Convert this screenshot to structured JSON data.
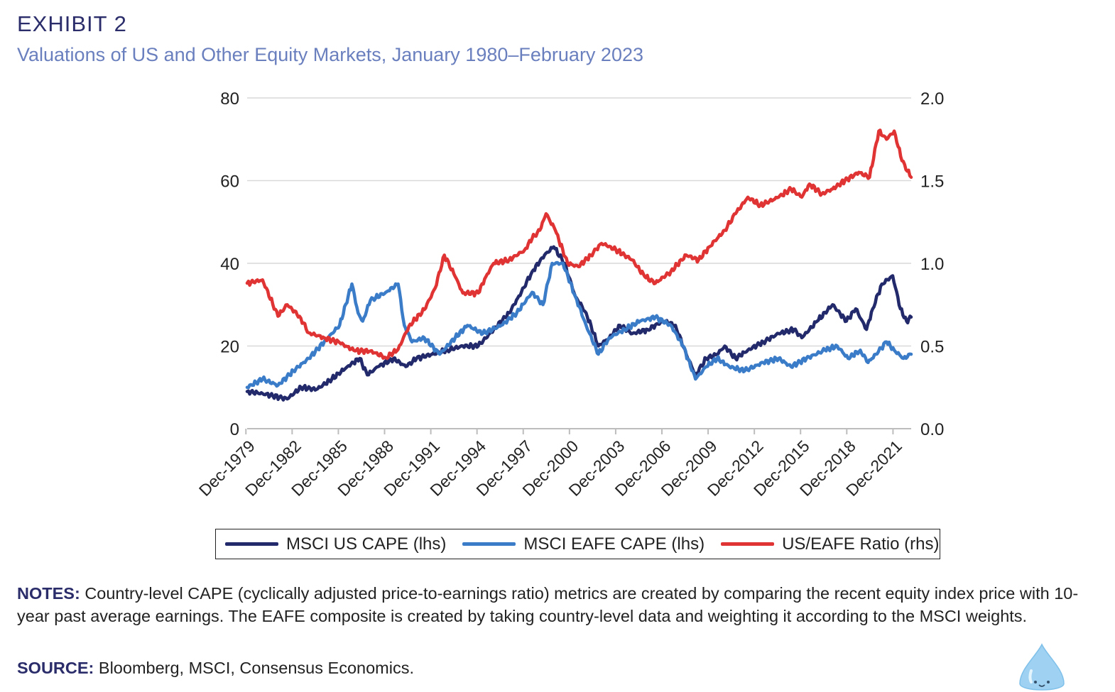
{
  "header": {
    "exhibit": "EXHIBIT 2",
    "subtitle": "Valuations of US and Other Equity Markets, January 1980–February 2023"
  },
  "footer": {
    "notes_label": "NOTES:",
    "notes_text": "Country-level CAPE (cyclically adjusted price-to-earnings ratio) metrics are created by comparing the recent equity index price with 10-year past average earnings. The EAFE composite is created by taking country-level data and weighting it according to the MSCI weights.",
    "source_label": "SOURCE:",
    "source_text": "Bloomberg, MSCI, Consensus Economics."
  },
  "colors": {
    "us": "#232a6b",
    "eafe": "#3b7cc9",
    "ratio": "#e03333",
    "grid": "#d9d9d9",
    "title": "#2b2d6b",
    "subtitle": "#6a7fbe"
  },
  "icons": {
    "corner": "water-drop-mascot-icon"
  },
  "chart_data": {
    "type": "line",
    "title": "Valuations of US and Other Equity Markets, January 1980–February 2023",
    "xlabel": "",
    "ylabel_left": "",
    "ylabel_right": "",
    "x_range": [
      1980.0,
      2023.1
    ],
    "xticks": [
      {
        "year": 1979.92,
        "label": "Dec-1979"
      },
      {
        "year": 1982.92,
        "label": "Dec-1982"
      },
      {
        "year": 1985.92,
        "label": "Dec-1985"
      },
      {
        "year": 1988.92,
        "label": "Dec-1988"
      },
      {
        "year": 1991.92,
        "label": "Dec-1991"
      },
      {
        "year": 1994.92,
        "label": "Dec-1994"
      },
      {
        "year": 1997.92,
        "label": "Dec-1997"
      },
      {
        "year": 2000.92,
        "label": "Dec-2000"
      },
      {
        "year": 2003.92,
        "label": "Dec-2003"
      },
      {
        "year": 2006.92,
        "label": "Dec-2006"
      },
      {
        "year": 2009.92,
        "label": "Dec-2009"
      },
      {
        "year": 2012.92,
        "label": "Dec-2012"
      },
      {
        "year": 2015.92,
        "label": "Dec-2015"
      },
      {
        "year": 2018.92,
        "label": "Dec-2018"
      },
      {
        "year": 2021.92,
        "label": "Dec-2021"
      }
    ],
    "ylim_left": [
      0,
      80
    ],
    "yticks_left": [
      "0",
      "20",
      "40",
      "60",
      "80"
    ],
    "ylim_right": [
      0,
      2
    ],
    "yticks_right": [
      "0.0",
      "0.5",
      "1.0",
      "1.5",
      "2.0"
    ],
    "grid": true,
    "legend_position": "bottom",
    "series": [
      {
        "name": "MSCI US CAPE (lhs)",
        "axis": "left",
        "color": "#232a6b",
        "points": [
          [
            1980.0,
            9
          ],
          [
            1981.0,
            8.5
          ],
          [
            1982.6,
            7.2
          ],
          [
            1983.5,
            10
          ],
          [
            1984.5,
            9.5
          ],
          [
            1985.5,
            12
          ],
          [
            1986.5,
            15
          ],
          [
            1987.3,
            17
          ],
          [
            1987.8,
            13
          ],
          [
            1988.5,
            15
          ],
          [
            1989.5,
            17
          ],
          [
            1990.3,
            15
          ],
          [
            1991.0,
            17
          ],
          [
            1992.0,
            18
          ],
          [
            1993.0,
            19
          ],
          [
            1994.0,
            20
          ],
          [
            1995.0,
            20
          ],
          [
            1996.0,
            24
          ],
          [
            1997.0,
            28
          ],
          [
            1997.8,
            33
          ],
          [
            1998.5,
            38
          ],
          [
            1999.3,
            42
          ],
          [
            1999.9,
            44
          ],
          [
            2000.6,
            40
          ],
          [
            2001.3,
            32
          ],
          [
            2002.0,
            28
          ],
          [
            2002.8,
            20
          ],
          [
            2003.5,
            22
          ],
          [
            2004.2,
            25
          ],
          [
            2005.0,
            23
          ],
          [
            2006.0,
            24
          ],
          [
            2007.0,
            26
          ],
          [
            2007.8,
            25
          ],
          [
            2008.5,
            18
          ],
          [
            2009.1,
            13
          ],
          [
            2009.8,
            17
          ],
          [
            2010.5,
            18
          ],
          [
            2011.0,
            20
          ],
          [
            2011.7,
            17
          ],
          [
            2012.5,
            19
          ],
          [
            2013.5,
            21
          ],
          [
            2014.5,
            23
          ],
          [
            2015.5,
            24
          ],
          [
            2016.0,
            22
          ],
          [
            2017.0,
            26
          ],
          [
            2018.0,
            30
          ],
          [
            2018.9,
            26
          ],
          [
            2019.5,
            29
          ],
          [
            2020.2,
            24
          ],
          [
            2020.6,
            29
          ],
          [
            2021.2,
            35
          ],
          [
            2021.9,
            37
          ],
          [
            2022.4,
            29
          ],
          [
            2022.8,
            26
          ],
          [
            2023.1,
            27
          ]
        ]
      },
      {
        "name": "MSCI EAFE CAPE (lhs)",
        "axis": "left",
        "color": "#3b7cc9",
        "points": [
          [
            1980.0,
            10
          ],
          [
            1981.0,
            12
          ],
          [
            1982.0,
            10.5
          ],
          [
            1983.0,
            14
          ],
          [
            1984.0,
            17
          ],
          [
            1985.0,
            21
          ],
          [
            1986.0,
            25
          ],
          [
            1986.8,
            35
          ],
          [
            1987.2,
            28
          ],
          [
            1987.5,
            26
          ],
          [
            1988.0,
            31
          ],
          [
            1989.0,
            33
          ],
          [
            1989.8,
            35
          ],
          [
            1990.2,
            25
          ],
          [
            1990.7,
            21
          ],
          [
            1991.5,
            22
          ],
          [
            1992.5,
            18
          ],
          [
            1993.5,
            22
          ],
          [
            1994.3,
            25
          ],
          [
            1995.3,
            23
          ],
          [
            1996.5,
            25
          ],
          [
            1997.5,
            28
          ],
          [
            1998.5,
            33
          ],
          [
            1999.2,
            30
          ],
          [
            1999.8,
            40
          ],
          [
            2000.5,
            40
          ],
          [
            2001.3,
            32
          ],
          [
            2002.0,
            25
          ],
          [
            2002.8,
            18
          ],
          [
            2003.5,
            22
          ],
          [
            2004.5,
            24
          ],
          [
            2005.5,
            26
          ],
          [
            2006.5,
            27
          ],
          [
            2007.5,
            25
          ],
          [
            2008.3,
            20
          ],
          [
            2009.1,
            12
          ],
          [
            2009.8,
            15
          ],
          [
            2010.5,
            17
          ],
          [
            2011.3,
            15
          ],
          [
            2012.3,
            14
          ],
          [
            2013.5,
            16
          ],
          [
            2014.5,
            17
          ],
          [
            2015.3,
            15
          ],
          [
            2016.3,
            17
          ],
          [
            2017.5,
            19
          ],
          [
            2018.3,
            20
          ],
          [
            2019.0,
            17
          ],
          [
            2019.8,
            19
          ],
          [
            2020.3,
            16
          ],
          [
            2020.8,
            18
          ],
          [
            2021.5,
            21
          ],
          [
            2022.0,
            19
          ],
          [
            2022.6,
            17
          ],
          [
            2023.1,
            18
          ]
        ]
      },
      {
        "name": "US/EAFE Ratio (rhs)",
        "axis": "right",
        "color": "#e03333",
        "points": [
          [
            1980.0,
            0.88
          ],
          [
            1981.0,
            0.9
          ],
          [
            1982.0,
            0.68
          ],
          [
            1982.6,
            0.75
          ],
          [
            1983.4,
            0.68
          ],
          [
            1984.0,
            0.58
          ],
          [
            1985.0,
            0.55
          ],
          [
            1986.0,
            0.52
          ],
          [
            1987.0,
            0.47
          ],
          [
            1988.0,
            0.47
          ],
          [
            1989.0,
            0.43
          ],
          [
            1989.8,
            0.48
          ],
          [
            1990.5,
            0.62
          ],
          [
            1991.5,
            0.72
          ],
          [
            1992.2,
            0.85
          ],
          [
            1992.8,
            1.05
          ],
          [
            1993.5,
            0.92
          ],
          [
            1994.0,
            0.82
          ],
          [
            1995.0,
            0.82
          ],
          [
            1995.5,
            0.92
          ],
          [
            1996.0,
            1.0
          ],
          [
            1997.0,
            1.02
          ],
          [
            1998.0,
            1.08
          ],
          [
            1998.5,
            1.15
          ],
          [
            1999.0,
            1.2
          ],
          [
            1999.4,
            1.3
          ],
          [
            2000.0,
            1.2
          ],
          [
            2000.8,
            1.0
          ],
          [
            2001.5,
            0.98
          ],
          [
            2002.3,
            1.05
          ],
          [
            2003.0,
            1.12
          ],
          [
            2003.6,
            1.1
          ],
          [
            2004.5,
            1.05
          ],
          [
            2005.0,
            1.02
          ],
          [
            2005.8,
            0.92
          ],
          [
            2006.5,
            0.88
          ],
          [
            2007.5,
            0.95
          ],
          [
            2008.5,
            1.05
          ],
          [
            2009.3,
            1.02
          ],
          [
            2010.0,
            1.1
          ],
          [
            2011.0,
            1.2
          ],
          [
            2011.7,
            1.3
          ],
          [
            2012.5,
            1.4
          ],
          [
            2013.3,
            1.35
          ],
          [
            2014.5,
            1.4
          ],
          [
            2015.3,
            1.45
          ],
          [
            2016.0,
            1.4
          ],
          [
            2016.5,
            1.48
          ],
          [
            2017.3,
            1.42
          ],
          [
            2018.0,
            1.45
          ],
          [
            2018.8,
            1.5
          ],
          [
            2019.7,
            1.55
          ],
          [
            2020.4,
            1.52
          ],
          [
            2021.0,
            1.8
          ],
          [
            2021.5,
            1.75
          ],
          [
            2022.0,
            1.8
          ],
          [
            2022.5,
            1.62
          ],
          [
            2023.1,
            1.52
          ]
        ]
      }
    ]
  }
}
